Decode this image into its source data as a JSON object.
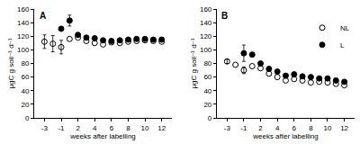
{
  "chart_data": [
    {
      "type": "scatter",
      "title": "A",
      "x_label": "weeks after labelling",
      "y_label": "µgC g soil⁻¹ d⁻¹",
      "categories": [
        "-3",
        null,
        "-1",
        null,
        "2",
        null,
        "4",
        null,
        "6",
        null,
        "8",
        null,
        "10",
        null,
        "12"
      ],
      "ylim": [
        0,
        160
      ],
      "yticks": [
        0,
        20,
        40,
        60,
        80,
        100,
        120,
        140,
        160
      ],
      "grid": false,
      "series": [
        {
          "name": "NL",
          "color": "#000000",
          "marker": "circle-open",
          "values": [
            112,
            109,
            104,
            116,
            118,
            113,
            110,
            108,
            111,
            110,
            112,
            113,
            114,
            113,
            112
          ],
          "errors": [
            10,
            12,
            10,
            null,
            null,
            null,
            null,
            null,
            null,
            null,
            null,
            null,
            null,
            null,
            null
          ]
        },
        {
          "name": "L",
          "color": "#000000",
          "marker": "circle",
          "values": [
            null,
            null,
            131,
            143,
            122,
            118,
            117,
            114,
            113,
            114,
            115,
            116,
            116,
            115,
            115
          ],
          "errors": [
            null,
            null,
            3,
            8,
            null,
            null,
            null,
            null,
            null,
            null,
            null,
            null,
            null,
            null,
            null
          ]
        }
      ]
    },
    {
      "type": "scatter",
      "title": "B",
      "x_label": "weeks after labelling",
      "y_label": "µgC g soil⁻¹ d⁻¹",
      "categories": [
        "-3",
        null,
        "-1",
        null,
        "2",
        null,
        "4",
        null,
        "6",
        null,
        "8",
        null,
        "10",
        null,
        "12"
      ],
      "ylim": [
        0,
        160
      ],
      "yticks": [
        0,
        20,
        40,
        60,
        80,
        100,
        120,
        140,
        160
      ],
      "grid": false,
      "legend": "right",
      "series": [
        {
          "name": "NL",
          "color": "#000000",
          "marker": "circle-open",
          "values": [
            83,
            78,
            70,
            76,
            73,
            65,
            60,
            55,
            57,
            55,
            52,
            53,
            52,
            50,
            48
          ],
          "errors": [
            3,
            null,
            5,
            null,
            null,
            null,
            null,
            null,
            null,
            null,
            null,
            null,
            null,
            null,
            null
          ]
        },
        {
          "name": "L",
          "color": "#000000",
          "marker": "circle",
          "values": [
            null,
            null,
            95,
            93,
            80,
            72,
            68,
            62,
            64,
            61,
            60,
            58,
            58,
            55,
            53
          ],
          "errors": [
            null,
            null,
            12,
            null,
            null,
            null,
            null,
            null,
            null,
            null,
            null,
            null,
            null,
            null,
            null
          ]
        }
      ]
    }
  ]
}
